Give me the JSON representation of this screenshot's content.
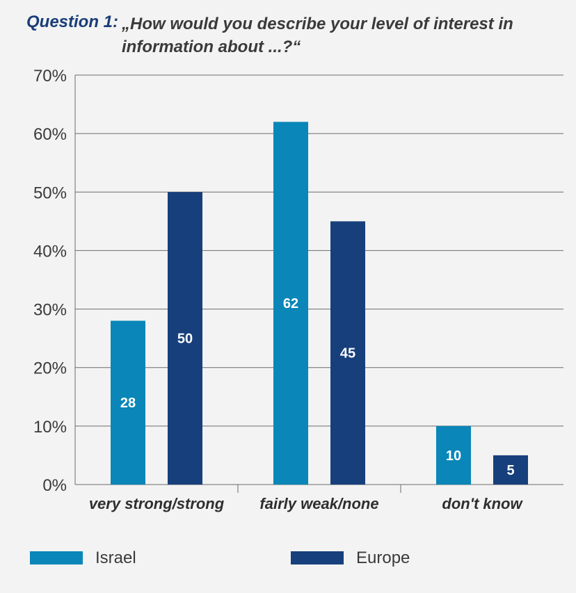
{
  "header": {
    "question_label": "Question 1:",
    "question_text": "„How would you describe your level of interest in information about ...?“"
  },
  "colors": {
    "israel": "#0a86b8",
    "europe": "#173f7c",
    "title_accent": "#1a3d78"
  },
  "chart_data": {
    "type": "bar",
    "title": "Question 1: „How would you describe your level of interest in information about ...?“",
    "categories": [
      "very strong/strong",
      "fairly weak/none",
      "don't know"
    ],
    "series": [
      {
        "name": "Israel",
        "values": [
          28,
          62,
          10
        ]
      },
      {
        "name": "Europe",
        "values": [
          50,
          45,
          5
        ]
      }
    ],
    "ylim": [
      0,
      70
    ],
    "yticks": [
      "0%",
      "10%",
      "20%",
      "30%",
      "40%",
      "50%",
      "60%",
      "70%"
    ],
    "xlabel": "",
    "ylabel": "",
    "grid": true,
    "legend": "bottom"
  }
}
